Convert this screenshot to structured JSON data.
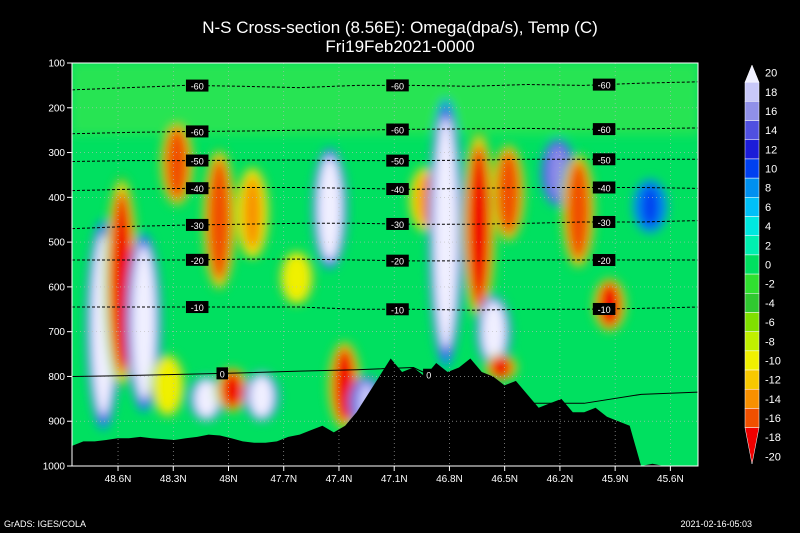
{
  "chart_data": {
    "type": "heatmap",
    "title": "N-S Cross-section (8.56E): Omega(dpa/s), Temp (C)",
    "subtitle": "Fri19Feb2021-0000",
    "x_tick_labels": [
      "48.6N",
      "48.3N",
      "48N",
      "47.7N",
      "47.4N",
      "47.1N",
      "46.8N",
      "46.5N",
      "46.2N",
      "45.9N",
      "45.6N"
    ],
    "x_ticks": [
      48.6,
      48.3,
      48.0,
      47.7,
      47.4,
      47.1,
      46.8,
      46.5,
      46.2,
      45.9,
      45.6
    ],
    "xlim": [
      48.85,
      45.45
    ],
    "y_ticks": [
      100,
      200,
      300,
      400,
      500,
      600,
      700,
      800,
      900,
      1000
    ],
    "ylim": [
      100,
      1000
    ],
    "colorbar": {
      "levels": [
        20,
        18,
        16,
        14,
        12,
        10,
        8,
        6,
        4,
        2,
        0,
        -2,
        -4,
        -6,
        -8,
        -10,
        -12,
        -14,
        -16,
        -18,
        -20
      ],
      "colors": [
        "#f0f0ff",
        "#c8c8f8",
        "#9090e8",
        "#5050e0",
        "#1c1cd8",
        "#0040f0",
        "#0090f0",
        "#00c0f8",
        "#00e8e0",
        "#00f0b0",
        "#00e060",
        "#30e030",
        "#30c830",
        "#80e000",
        "#c0f000",
        "#f0f000",
        "#f8c800",
        "#f89000",
        "#f05000",
        "#f00000"
      ]
    },
    "temperature_contours": [
      {
        "label": "-60",
        "y": [
          160,
          155,
          150,
          152,
          155,
          150,
          150,
          152,
          148,
          150,
          145,
          142
        ]
      },
      {
        "label": "-60",
        "y": [
          258,
          255,
          253,
          252,
          250,
          250,
          248,
          247,
          246,
          248,
          247,
          245
        ]
      },
      {
        "label": "-50",
        "y": [
          320,
          318,
          318,
          317,
          317,
          318,
          318,
          317,
          315,
          315,
          315,
          315
        ]
      },
      {
        "label": "-40",
        "y": [
          385,
          382,
          380,
          378,
          378,
          380,
          382,
          380,
          378,
          378,
          378,
          380
        ]
      },
      {
        "label": "-30",
        "y": [
          470,
          465,
          462,
          460,
          458,
          458,
          460,
          460,
          458,
          455,
          455,
          452
        ]
      },
      {
        "label": "-20",
        "y": [
          540,
          540,
          540,
          538,
          538,
          540,
          542,
          542,
          540,
          540,
          540,
          540
        ]
      },
      {
        "label": "-10",
        "y": [
          645,
          645,
          645,
          645,
          645,
          650,
          650,
          652,
          650,
          650,
          648,
          645
        ]
      },
      {
        "label": "0",
        "y": [
          800,
          798,
          795,
          792,
          788,
          785,
          780,
          840,
          860,
          860,
          840,
          835
        ]
      }
    ],
    "terrain_pressure": [
      955,
      945,
      945,
      942,
      938,
      938,
      935,
      938,
      940,
      942,
      938,
      935,
      930,
      932,
      938,
      945,
      948,
      948,
      945,
      935,
      930,
      920,
      910,
      925,
      910,
      880,
      840,
      800,
      760,
      790,
      780,
      800,
      770,
      790,
      780,
      760,
      790,
      800,
      820,
      810,
      840,
      870,
      860,
      850,
      880,
      880,
      870,
      890,
      900,
      910,
      1000,
      995,
      1000,
      1000,
      1000,
      1005
    ],
    "omega_features": [
      {
        "lat": 48.68,
        "p_top": 450,
        "p_bottom": 920,
        "value": 20
      },
      {
        "lat": 48.58,
        "p_top": 350,
        "p_bottom": 830,
        "value": -20
      },
      {
        "lat": 48.46,
        "p_top": 480,
        "p_bottom": 880,
        "value": 20
      },
      {
        "lat": 48.28,
        "p_top": 230,
        "p_bottom": 420,
        "value": -18
      },
      {
        "lat": 48.33,
        "p_top": 750,
        "p_bottom": 890,
        "value": -12
      },
      {
        "lat": 48.05,
        "p_top": 290,
        "p_bottom": 610,
        "value": -18
      },
      {
        "lat": 48.12,
        "p_top": 800,
        "p_bottom": 900,
        "value": 20
      },
      {
        "lat": 47.98,
        "p_top": 780,
        "p_bottom": 880,
        "value": -20
      },
      {
        "lat": 47.87,
        "p_top": 330,
        "p_bottom": 540,
        "value": -16
      },
      {
        "lat": 47.82,
        "p_top": 790,
        "p_bottom": 900,
        "value": 20
      },
      {
        "lat": 47.63,
        "p_top": 520,
        "p_bottom": 640,
        "value": -12
      },
      {
        "lat": 47.45,
        "p_top": 290,
        "p_bottom": 560,
        "value": 20
      },
      {
        "lat": 47.37,
        "p_top": 720,
        "p_bottom": 920,
        "value": -20
      },
      {
        "lat": 47.25,
        "p_top": 800,
        "p_bottom": 920,
        "value": 16
      },
      {
        "lat": 46.93,
        "p_top": 330,
        "p_bottom": 480,
        "value": -16
      },
      {
        "lat": 46.82,
        "p_top": 180,
        "p_bottom": 780,
        "value": 20
      },
      {
        "lat": 46.64,
        "p_top": 250,
        "p_bottom": 680,
        "value": -20
      },
      {
        "lat": 46.56,
        "p_top": 620,
        "p_bottom": 780,
        "value": 20
      },
      {
        "lat": 46.52,
        "p_top": 750,
        "p_bottom": 810,
        "value": -20
      },
      {
        "lat": 46.48,
        "p_top": 280,
        "p_bottom": 500,
        "value": -18
      },
      {
        "lat": 46.21,
        "p_top": 270,
        "p_bottom": 420,
        "value": 14
      },
      {
        "lat": 46.1,
        "p_top": 300,
        "p_bottom": 560,
        "value": -18
      },
      {
        "lat": 45.93,
        "p_top": 580,
        "p_bottom": 700,
        "value": -20
      },
      {
        "lat": 45.71,
        "p_top": 360,
        "p_bottom": 480,
        "value": 8
      }
    ]
  },
  "footer": {
    "left": "GrADS: IGES/COLA",
    "right": "2021-02-16-05:03"
  }
}
